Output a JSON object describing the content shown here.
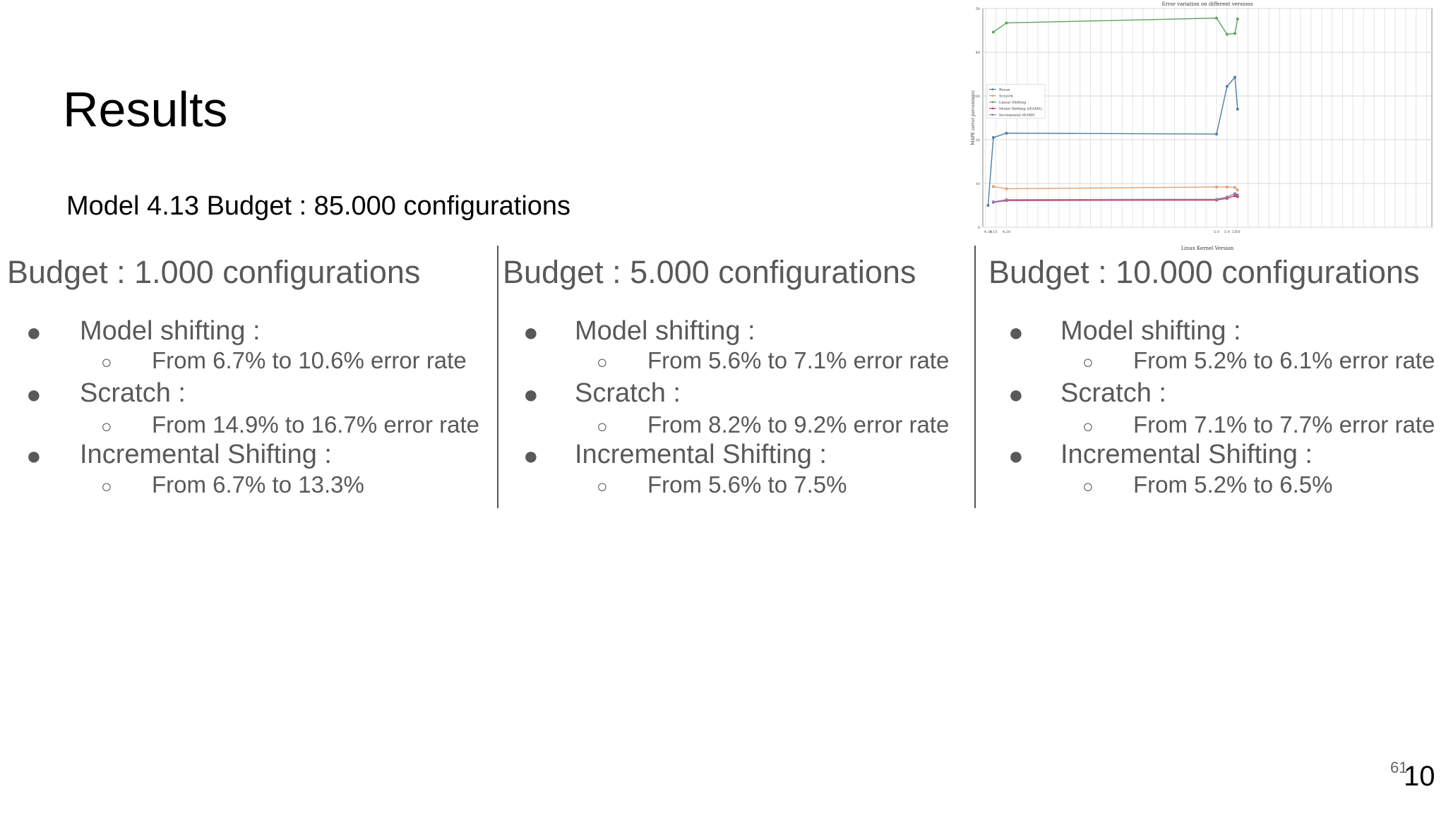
{
  "slide": {
    "title": "Results",
    "subtitle": "Model 4.13 Budget : 85.000 configurations",
    "page_number_small": "61",
    "page_number": "10"
  },
  "columns": [
    {
      "heading": "Budget : 1.000 configurations",
      "items": [
        {
          "label": "Model shifting :",
          "detail": "From 6.7% to 10.6% error rate"
        },
        {
          "label": "Scratch :",
          "detail": "From 14.9% to 16.7% error rate"
        },
        {
          "label": "Incremental Shifting :",
          "detail": "From 6.7% to 13.3%"
        }
      ]
    },
    {
      "heading": "Budget : 5.000 configurations",
      "items": [
        {
          "label": "Model shifting :",
          "detail": "From 5.6% to 7.1% error rate"
        },
        {
          "label": "Scratch :",
          "detail": "From 8.2% to 9.2% error rate"
        },
        {
          "label": "Incremental Shifting :",
          "detail": "From 5.6% to 7.5%"
        }
      ]
    },
    {
      "heading": "Budget : 10.000 configurations",
      "items": [
        {
          "label": "Model shifting :",
          "detail": "From 5.2% to 6.1% error rate"
        },
        {
          "label": "Scratch :",
          "detail": "From 7.1% to 7.7% error rate"
        },
        {
          "label": "Incremental Shifting :",
          "detail": "From 5.2% to 6.5%"
        }
      ]
    }
  ],
  "bullets": {
    "main": "●",
    "sub": "○"
  },
  "chart_data": {
    "type": "line",
    "title": "Error variation on different versions",
    "xlabel": "Linux Kernel Version",
    "ylabel": "MAPE (error percentage)",
    "categories": [
      "4.13",
      "4.15",
      "4.20",
      "5.0",
      "5.4",
      "5.7",
      "5.8"
    ],
    "ylim": [
      0,
      50
    ],
    "yticks": [
      "0",
      "10",
      "20",
      "30",
      "40",
      "50"
    ],
    "grid": true,
    "legend_position": "left",
    "colors": {
      "Reuse": "#4a7fa8",
      "Scratch": "#e0a070",
      "Linear Shifting": "#5aa55a",
      "Model Shifting (tEAMS)": "#c0405a",
      "Incremental tEAMS": "#8f7fb0"
    },
    "series": [
      {
        "name": "Reuse",
        "x": [
          "4.13",
          "4.15",
          "4.20",
          "5.0",
          "5.4",
          "5.7",
          "5.8"
        ],
        "values": [
          5,
          20.5,
          21.5,
          21.3,
          32.2,
          34.3,
          27
        ]
      },
      {
        "name": "Scratch",
        "x": [
          "4.15",
          "4.20",
          "5.0",
          "5.4",
          "5.7",
          "5.8"
        ],
        "values": [
          9.3,
          8.8,
          9.2,
          9.2,
          9.1,
          8.5
        ]
      },
      {
        "name": "Linear Shifting",
        "x": [
          "4.15",
          "4.20",
          "5.0",
          "5.4",
          "5.7",
          "5.8"
        ],
        "values": [
          44.6,
          46.7,
          47.8,
          44.1,
          44.3,
          47.6
        ]
      },
      {
        "name": "Model Shifting (tEAMS)",
        "x": [
          "4.15",
          "4.20",
          "5.0",
          "5.4",
          "5.7",
          "5.8"
        ],
        "values": [
          5.7,
          6.1,
          6.2,
          6.6,
          7.2,
          7.0
        ]
      },
      {
        "name": "Incremental tEAMS",
        "x": [
          "4.15",
          "4.20",
          "5.0",
          "5.4",
          "5.7",
          "5.8"
        ],
        "values": [
          5.8,
          6.3,
          6.4,
          6.9,
          7.7,
          7.4
        ]
      }
    ]
  }
}
